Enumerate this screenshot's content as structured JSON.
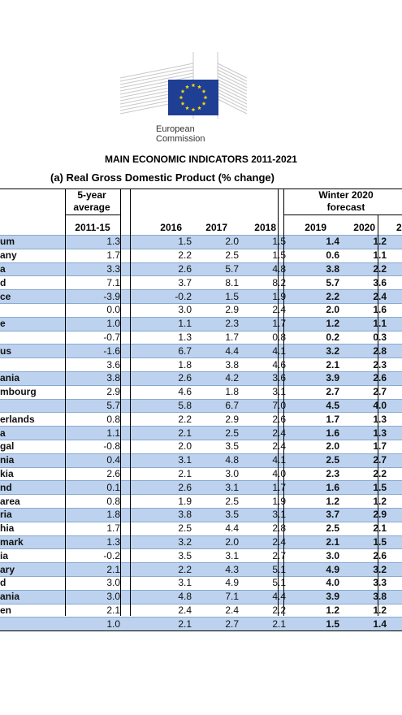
{
  "header": {
    "logo_line1": "European",
    "logo_line2": "Commission",
    "title": "MAIN ECONOMIC INDICATORS 2011-2021",
    "subtitle": "(a) Real Gross Domestic Product (% change)"
  },
  "columns": {
    "avg_label_1": "5-year",
    "avg_label_2": "average",
    "forecast_label_1": "Winter 2020",
    "forecast_label_2": "forecast",
    "c_avg": "2011-15",
    "c2016": "2016",
    "c2017": "2017",
    "c2018": "2018",
    "c2019": "2019",
    "c2020": "2020",
    "c2021": "2"
  },
  "rows": [
    {
      "name": "um",
      "avg": "1.3",
      "y2016": "1.5",
      "y2017": "2.0",
      "y2018": "1.5",
      "y2019": "1.4",
      "y2020": "1.2"
    },
    {
      "name": "any",
      "avg": "1.7",
      "y2016": "2.2",
      "y2017": "2.5",
      "y2018": "1.5",
      "y2019": "0.6",
      "y2020": "1.1"
    },
    {
      "name": "a",
      "avg": "3.3",
      "y2016": "2.6",
      "y2017": "5.7",
      "y2018": "4.8",
      "y2019": "3.8",
      "y2020": "2.2"
    },
    {
      "name": "d",
      "avg": "7.1",
      "y2016": "3.7",
      "y2017": "8.1",
      "y2018": "8.2",
      "y2019": "5.7",
      "y2020": "3.6"
    },
    {
      "name": "ce",
      "avg": "-3.9",
      "y2016": "-0.2",
      "y2017": "1.5",
      "y2018": "1.9",
      "y2019": "2.2",
      "y2020": "2.4"
    },
    {
      "name": "",
      "avg": "0.0",
      "y2016": "3.0",
      "y2017": "2.9",
      "y2018": "2.4",
      "y2019": "2.0",
      "y2020": "1.6"
    },
    {
      "name": "e",
      "avg": "1.0",
      "y2016": "1.1",
      "y2017": "2.3",
      "y2018": "1.7",
      "y2019": "1.2",
      "y2020": "1.1"
    },
    {
      "name": "",
      "avg": "-0.7",
      "y2016": "1.3",
      "y2017": "1.7",
      "y2018": "0.8",
      "y2019": "0.2",
      "y2020": "0.3"
    },
    {
      "name": "us",
      "avg": "-1.6",
      "y2016": "6.7",
      "y2017": "4.4",
      "y2018": "4.1",
      "y2019": "3.2",
      "y2020": "2.8"
    },
    {
      "name": "",
      "avg": "3.6",
      "y2016": "1.8",
      "y2017": "3.8",
      "y2018": "4.6",
      "y2019": "2.1",
      "y2020": "2.3"
    },
    {
      "name": "ania",
      "avg": "3.8",
      "y2016": "2.6",
      "y2017": "4.2",
      "y2018": "3.6",
      "y2019": "3.9",
      "y2020": "2.6"
    },
    {
      "name": "mbourg",
      "avg": "2.9",
      "y2016": "4.6",
      "y2017": "1.8",
      "y2018": "3.1",
      "y2019": "2.7",
      "y2020": "2.7"
    },
    {
      "name": "",
      "avg": "5.7",
      "y2016": "5.8",
      "y2017": "6.7",
      "y2018": "7.0",
      "y2019": "4.5",
      "y2020": "4.0"
    },
    {
      "name": "erlands",
      "avg": "0.8",
      "y2016": "2.2",
      "y2017": "2.9",
      "y2018": "2.6",
      "y2019": "1.7",
      "y2020": "1.3"
    },
    {
      "name": "a",
      "avg": "1.1",
      "y2016": "2.1",
      "y2017": "2.5",
      "y2018": "2.4",
      "y2019": "1.6",
      "y2020": "1.3"
    },
    {
      "name": "gal",
      "avg": "-0.8",
      "y2016": "2.0",
      "y2017": "3.5",
      "y2018": "2.4",
      "y2019": "2.0",
      "y2020": "1.7"
    },
    {
      "name": "nia",
      "avg": "0.4",
      "y2016": "3.1",
      "y2017": "4.8",
      "y2018": "4.1",
      "y2019": "2.5",
      "y2020": "2.7"
    },
    {
      "name": "kia",
      "avg": "2.6",
      "y2016": "2.1",
      "y2017": "3.0",
      "y2018": "4.0",
      "y2019": "2.3",
      "y2020": "2.2"
    },
    {
      "name": "nd",
      "avg": "0.1",
      "y2016": "2.6",
      "y2017": "3.1",
      "y2018": "1.7",
      "y2019": "1.6",
      "y2020": "1.5"
    },
    {
      "name": "area",
      "avg": "0.8",
      "y2016": "1.9",
      "y2017": "2.5",
      "y2018": "1.9",
      "y2019": "1.2",
      "y2020": "1.2"
    },
    {
      "name": "ria",
      "avg": "1.8",
      "y2016": "3.8",
      "y2017": "3.5",
      "y2018": "3.1",
      "y2019": "3.7",
      "y2020": "2.9"
    },
    {
      "name": "hia",
      "avg": "1.7",
      "y2016": "2.5",
      "y2017": "4.4",
      "y2018": "2.8",
      "y2019": "2.5",
      "y2020": "2.1"
    },
    {
      "name": "mark",
      "avg": "1.3",
      "y2016": "3.2",
      "y2017": "2.0",
      "y2018": "2.4",
      "y2019": "2.1",
      "y2020": "1.5"
    },
    {
      "name": "ia",
      "avg": "-0.2",
      "y2016": "3.5",
      "y2017": "3.1",
      "y2018": "2.7",
      "y2019": "3.0",
      "y2020": "2.6"
    },
    {
      "name": "ary",
      "avg": "2.1",
      "y2016": "2.2",
      "y2017": "4.3",
      "y2018": "5.1",
      "y2019": "4.9",
      "y2020": "3.2"
    },
    {
      "name": "d",
      "avg": "3.0",
      "y2016": "3.1",
      "y2017": "4.9",
      "y2018": "5.1",
      "y2019": "4.0",
      "y2020": "3.3"
    },
    {
      "name": "ania",
      "avg": "3.0",
      "y2016": "4.8",
      "y2017": "7.1",
      "y2018": "4.4",
      "y2019": "3.9",
      "y2020": "3.8"
    },
    {
      "name": "en",
      "avg": "2.1",
      "y2016": "2.4",
      "y2017": "2.4",
      "y2018": "2.2",
      "y2019": "1.2",
      "y2020": "1.2"
    },
    {
      "name": "",
      "avg": "1.0",
      "y2016": "2.1",
      "y2017": "2.7",
      "y2018": "2.1",
      "y2019": "1.5",
      "y2020": "1.4"
    }
  ],
  "shaded_rows": [
    0,
    2,
    4,
    6,
    8,
    10,
    12,
    14,
    16,
    18,
    20,
    22,
    24,
    26,
    28
  ],
  "colors": {
    "row_shade": "#bcd2ee",
    "flag_blue": "#1f3f95",
    "flag_star": "#ffdd00"
  }
}
